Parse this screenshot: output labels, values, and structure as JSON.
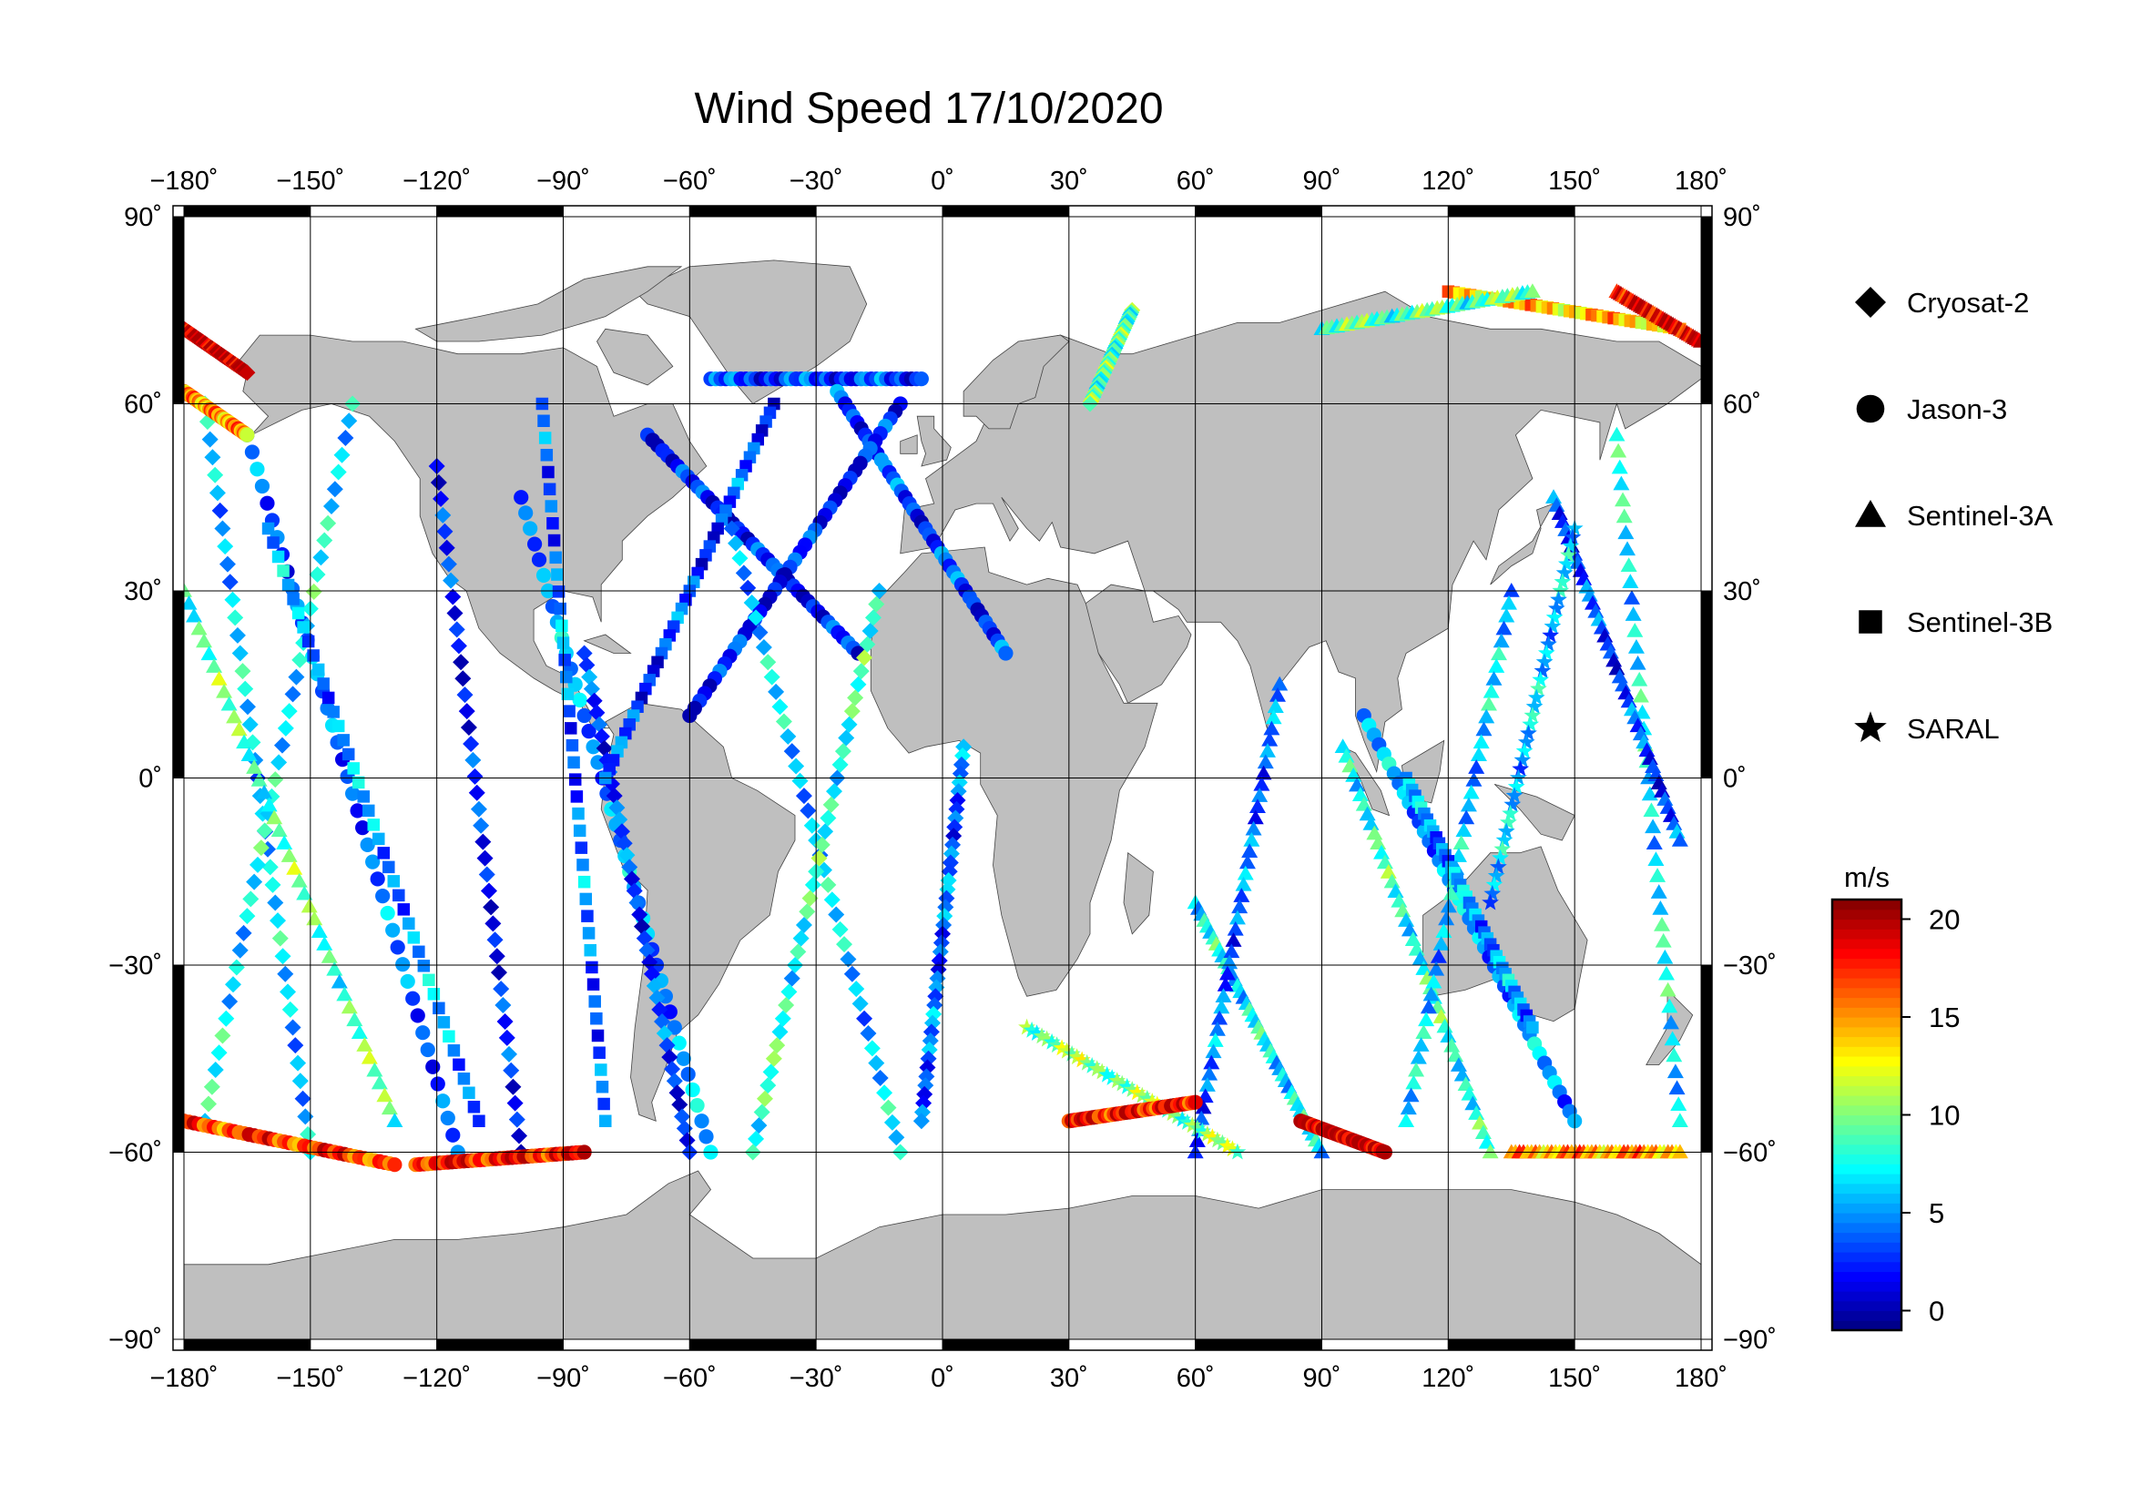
{
  "title": "Wind Speed 17/10/2020",
  "lon_ticks": [
    {
      "value": -180,
      "label": "−180˚"
    },
    {
      "value": -150,
      "label": "−150˚"
    },
    {
      "value": -120,
      "label": "−120˚"
    },
    {
      "value": -90,
      "label": "−90˚"
    },
    {
      "value": -60,
      "label": "−60˚"
    },
    {
      "value": -30,
      "label": "−30˚"
    },
    {
      "value": 0,
      "label": "0˚"
    },
    {
      "value": 30,
      "label": "30˚"
    },
    {
      "value": 60,
      "label": "60˚"
    },
    {
      "value": 90,
      "label": "90˚"
    },
    {
      "value": 120,
      "label": "120˚"
    },
    {
      "value": 150,
      "label": "150˚"
    },
    {
      "value": 180,
      "label": "180˚"
    }
  ],
  "lat_ticks": [
    {
      "value": 90,
      "label": "90˚"
    },
    {
      "value": 60,
      "label": "60˚"
    },
    {
      "value": 30,
      "label": "30˚"
    },
    {
      "value": 0,
      "label": "0˚"
    },
    {
      "value": -30,
      "label": "−30˚"
    },
    {
      "value": -60,
      "label": "−60˚"
    },
    {
      "value": -90,
      "label": "−90˚"
    }
  ],
  "legend": {
    "items": [
      {
        "label": "Cryosat-2",
        "marker": "diamond"
      },
      {
        "label": "Jason-3",
        "marker": "circle"
      },
      {
        "label": "Sentinel-3A",
        "marker": "triangle"
      },
      {
        "label": "Sentinel-3B",
        "marker": "square"
      },
      {
        "label": "SARAL",
        "marker": "star"
      }
    ]
  },
  "colorbar": {
    "unit": "m/s",
    "min": -1,
    "max": 21,
    "ticks": [
      {
        "value": 0,
        "label": "0"
      },
      {
        "value": 5,
        "label": "5"
      },
      {
        "value": 10,
        "label": "10"
      },
      {
        "value": 15,
        "label": "15"
      },
      {
        "value": 20,
        "label": "20"
      }
    ],
    "colors": [
      "#00007f",
      "#0000ff",
      "#007fff",
      "#00ffff",
      "#7fff7f",
      "#ffff00",
      "#ff7f00",
      "#ff0000",
      "#7f0000"
    ]
  },
  "colors": {
    "land": "#bfbfbf",
    "ocean": "#ffffff",
    "frame": "#000000",
    "grid": "#000000"
  },
  "chart_data": {
    "type": "scatter",
    "title": "Wind Speed 17/10/2020",
    "x_axis": {
      "range": [
        -180,
        180
      ],
      "unit": "degrees longitude"
    },
    "y_axis": {
      "range": [
        -90,
        90
      ],
      "unit": "degrees latitude"
    },
    "grid": true,
    "legend_placement": "right",
    "color_scale": {
      "label": "m/s",
      "range": [
        -1,
        21
      ]
    },
    "tracks": [
      {
        "series": "Jason-3",
        "from": [
          -55,
          64
        ],
        "to": [
          -5,
          64
        ],
        "wind": 3
      },
      {
        "series": "Jason-3",
        "from": [
          -25,
          62
        ],
        "to": [
          15,
          20
        ],
        "wind": 3
      },
      {
        "series": "Jason-3",
        "from": [
          -70,
          55
        ],
        "to": [
          -20,
          20
        ],
        "wind": 2
      },
      {
        "series": "Jason-3",
        "from": [
          -10,
          60
        ],
        "to": [
          -60,
          10
        ],
        "wind": 2
      },
      {
        "series": "Jason-3",
        "from": [
          -165,
          55
        ],
        "to": [
          -115,
          -60
        ],
        "wind": 4
      },
      {
        "series": "Jason-3",
        "from": [
          -100,
          45
        ],
        "to": [
          -55,
          -60
        ],
        "wind": 5
      },
      {
        "series": "Jason-3",
        "from": [
          100,
          10
        ],
        "to": [
          150,
          -55
        ],
        "wind": 5
      },
      {
        "series": "Cryosat-2",
        "from": [
          -175,
          60
        ],
        "to": [
          -150,
          -60
        ],
        "wind": 6
      },
      {
        "series": "Cryosat-2",
        "from": [
          -140,
          60
        ],
        "to": [
          -175,
          -55
        ],
        "wind": 7
      },
      {
        "series": "Cryosat-2",
        "from": [
          -120,
          50
        ],
        "to": [
          -100,
          -60
        ],
        "wind": 2
      },
      {
        "series": "Cryosat-2",
        "from": [
          -85,
          20
        ],
        "to": [
          -60,
          -60
        ],
        "wind": 3
      },
      {
        "series": "Cryosat-2",
        "from": [
          -50,
          40
        ],
        "to": [
          -10,
          -60
        ],
        "wind": 6
      },
      {
        "series": "Cryosat-2",
        "from": [
          -15,
          30
        ],
        "to": [
          -45,
          -60
        ],
        "wind": 8
      },
      {
        "series": "Cryosat-2",
        "from": [
          5,
          5
        ],
        "to": [
          -5,
          -55
        ],
        "wind": 4
      },
      {
        "series": "Cryosat-2",
        "from": [
          45,
          75
        ],
        "to": [
          35,
          60
        ],
        "wind": 9
      },
      {
        "series": "Sentinel-3A",
        "from": [
          60,
          -20
        ],
        "to": [
          90,
          -60
        ],
        "wind": 7
      },
      {
        "series": "Sentinel-3A",
        "from": [
          80,
          15
        ],
        "to": [
          60,
          -60
        ],
        "wind": 4
      },
      {
        "series": "Sentinel-3A",
        "from": [
          95,
          5
        ],
        "to": [
          130,
          -60
        ],
        "wind": 8
      },
      {
        "series": "Sentinel-3A",
        "from": [
          135,
          30
        ],
        "to": [
          110,
          -55
        ],
        "wind": 6
      },
      {
        "series": "Sentinel-3A",
        "from": [
          160,
          55
        ],
        "to": [
          175,
          -55
        ],
        "wind": 7
      },
      {
        "series": "Sentinel-3A",
        "from": [
          145,
          45
        ],
        "to": [
          175,
          -10
        ],
        "wind": 3
      },
      {
        "series": "Sentinel-3A",
        "from": [
          -180,
          30
        ],
        "to": [
          -130,
          -55
        ],
        "wind": 9
      },
      {
        "series": "Sentinel-3B",
        "from": [
          -160,
          40
        ],
        "to": [
          -110,
          -55
        ],
        "wind": 5
      },
      {
        "series": "Sentinel-3B",
        "from": [
          -95,
          60
        ],
        "to": [
          -80,
          -55
        ],
        "wind": 4
      },
      {
        "series": "Sentinel-3B",
        "from": [
          -40,
          60
        ],
        "to": [
          -80,
          0
        ],
        "wind": 3
      },
      {
        "series": "Sentinel-3B",
        "from": [
          110,
          0
        ],
        "to": [
          140,
          -40
        ],
        "wind": 5
      },
      {
        "series": "Sentinel-3B",
        "from": [
          120,
          78
        ],
        "to": [
          175,
          72
        ],
        "wind": 14
      },
      {
        "series": "SARAL",
        "from": [
          20,
          -40
        ],
        "to": [
          70,
          -60
        ],
        "wind": 10
      },
      {
        "series": "SARAL",
        "from": [
          150,
          40
        ],
        "to": [
          130,
          -20
        ],
        "wind": 6
      },
      {
        "series": "Jason-3",
        "from": [
          -180,
          -55
        ],
        "to": [
          -130,
          -62
        ],
        "wind": 17
      },
      {
        "series": "Jason-3",
        "from": [
          -125,
          -62
        ],
        "to": [
          -85,
          -60
        ],
        "wind": 18
      },
      {
        "series": "Jason-3",
        "from": [
          30,
          -55
        ],
        "to": [
          60,
          -52
        ],
        "wind": 18
      },
      {
        "series": "Jason-3",
        "from": [
          85,
          -55
        ],
        "to": [
          105,
          -60
        ],
        "wind": 20
      },
      {
        "series": "Cryosat-2",
        "from": [
          -180,
          72
        ],
        "to": [
          -165,
          65
        ],
        "wind": 20
      },
      {
        "series": "Jason-3",
        "from": [
          -180,
          62
        ],
        "to": [
          -165,
          55
        ],
        "wind": 15
      },
      {
        "series": "Sentinel-3A",
        "from": [
          135,
          -60
        ],
        "to": [
          175,
          -60
        ],
        "wind": 15
      },
      {
        "series": "Sentinel-3A",
        "from": [
          160,
          78
        ],
        "to": [
          180,
          70
        ],
        "wind": 19
      },
      {
        "series": "Sentinel-3A",
        "from": [
          90,
          72
        ],
        "to": [
          140,
          78
        ],
        "wind": 9
      }
    ]
  }
}
